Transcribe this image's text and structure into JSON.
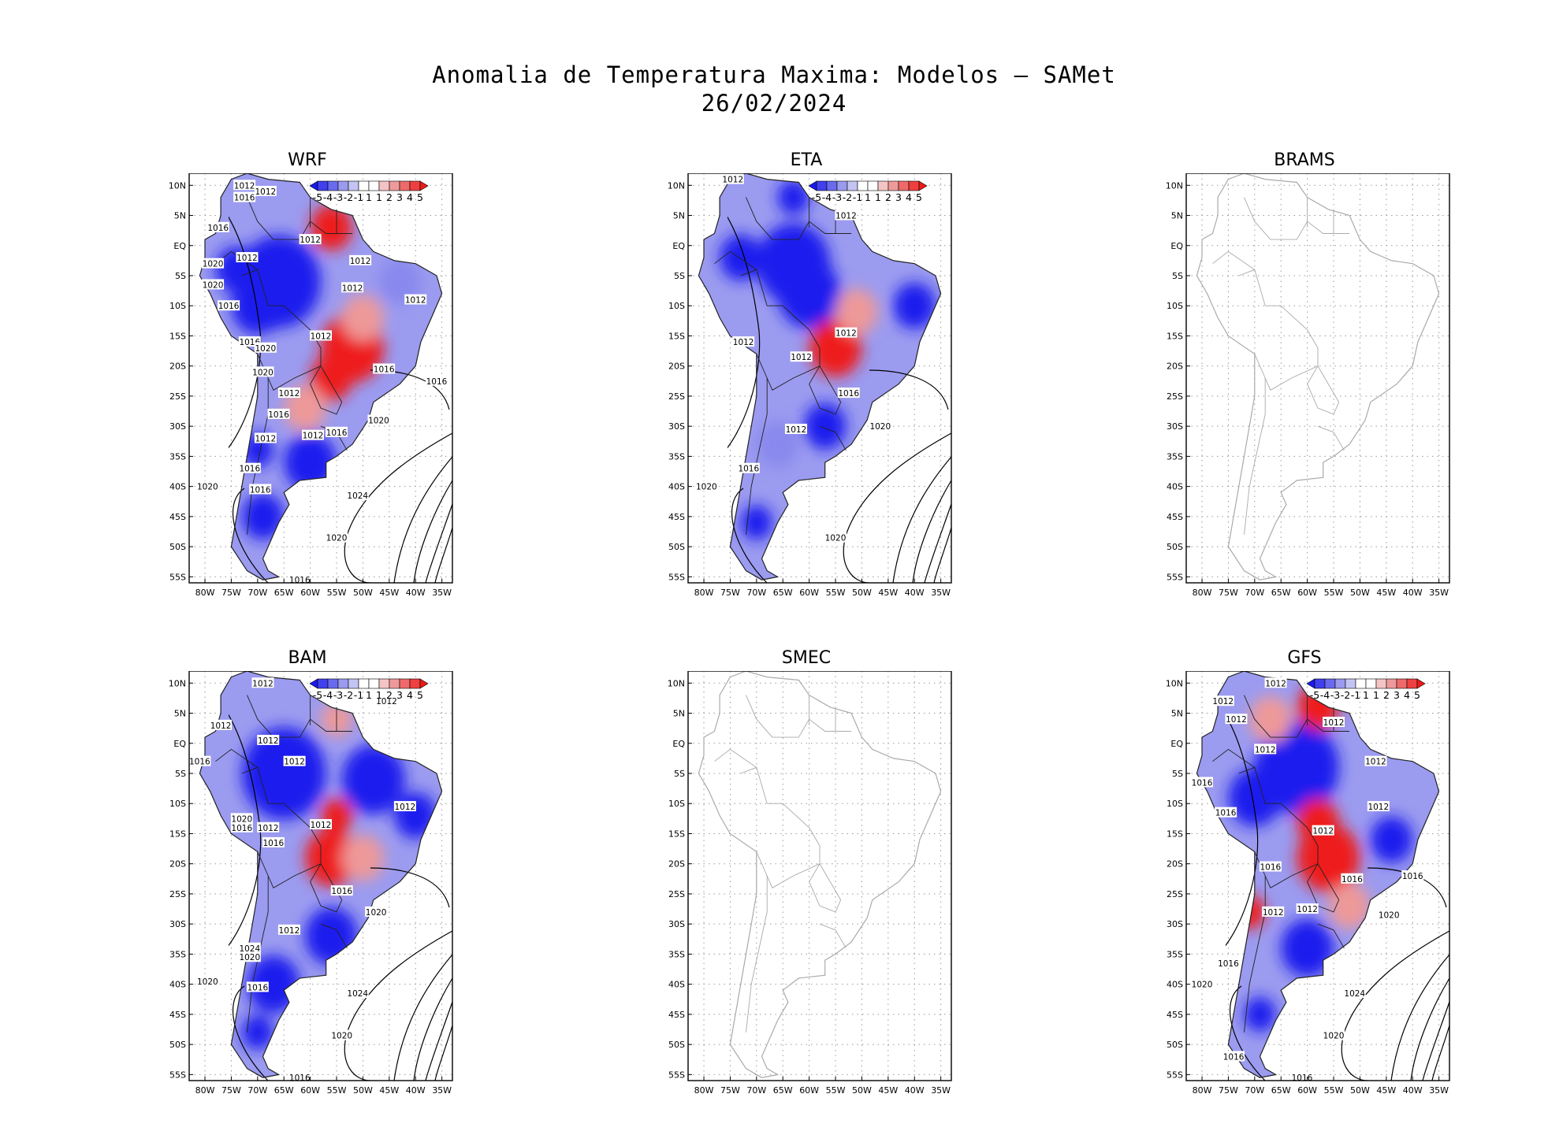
{
  "title": {
    "line1": "Anomalia de Temperatura Maxima: Modelos – SAMet",
    "line2": "26/02/2024"
  },
  "colors": {
    "cold": "#1a1aee",
    "mid_cold": "#8888ee",
    "neutral": "#ffffff",
    "mid_warm": "#ee9999",
    "warm": "#ee1a1a",
    "coast_active": "#222222",
    "coast_inactive": "#aaaaaa",
    "grid": "#999999"
  },
  "axes": {
    "lat_ticks": [
      "10N",
      "5N",
      "EQ",
      "5S",
      "10S",
      "15S",
      "20S",
      "25S",
      "30S",
      "35S",
      "40S",
      "45S",
      "50S",
      "55S"
    ],
    "lon_ticks": [
      "80W",
      "75W",
      "70W",
      "65W",
      "60W",
      "55W",
      "50W",
      "45W",
      "40W",
      "35W"
    ],
    "lon_range": [
      -83,
      -33
    ],
    "lat_range": [
      -56,
      12
    ]
  },
  "colorbar": {
    "labels": [
      "-5",
      "-4",
      "-3",
      "-2",
      "-1",
      "1",
      "1",
      "2",
      "3",
      "4",
      "5"
    ]
  },
  "panels": [
    {
      "id": "wrf",
      "label": "WRF",
      "has_data": true,
      "isobars": [
        {
          "text": "1012",
          "lon": -72.5,
          "lat": 10
        },
        {
          "text": "1012",
          "lon": -68.5,
          "lat": 9
        },
        {
          "text": "1016",
          "lon": -72.5,
          "lat": 8
        },
        {
          "text": "1016",
          "lon": -77.5,
          "lat": 3
        },
        {
          "text": "1012",
          "lon": -60,
          "lat": 1
        },
        {
          "text": "1012",
          "lon": -72,
          "lat": -2
        },
        {
          "text": "1020",
          "lon": -78.5,
          "lat": -3
        },
        {
          "text": "1012",
          "lon": -50.5,
          "lat": -2.5
        },
        {
          "text": "1020",
          "lon": -78.5,
          "lat": -6.5
        },
        {
          "text": "1012",
          "lon": -52,
          "lat": -7
        },
        {
          "text": "1012",
          "lon": -40,
          "lat": -9
        },
        {
          "text": "1016",
          "lon": -75.5,
          "lat": -10
        },
        {
          "text": "1012",
          "lon": -58,
          "lat": -15
        },
        {
          "text": "1016",
          "lon": -71.5,
          "lat": -16
        },
        {
          "text": "1020",
          "lon": -68.5,
          "lat": -17
        },
        {
          "text": "1016",
          "lon": -46,
          "lat": -20.5
        },
        {
          "text": "1020",
          "lon": -69,
          "lat": -21
        },
        {
          "text": "1012",
          "lon": -64,
          "lat": -24.5
        },
        {
          "text": "1016",
          "lon": -36,
          "lat": -22.5
        },
        {
          "text": "1016",
          "lon": -66,
          "lat": -28
        },
        {
          "text": "1020",
          "lon": -47,
          "lat": -29
        },
        {
          "text": "1012",
          "lon": -68.5,
          "lat": -32
        },
        {
          "text": "1012",
          "lon": -59.5,
          "lat": -31.5
        },
        {
          "text": "1016",
          "lon": -55,
          "lat": -31
        },
        {
          "text": "1016",
          "lon": -71.5,
          "lat": -37
        },
        {
          "text": "1020",
          "lon": -79.5,
          "lat": -40
        },
        {
          "text": "1016",
          "lon": -69.5,
          "lat": -40.5
        },
        {
          "text": "1024",
          "lon": -51,
          "lat": -41.5
        },
        {
          "text": "1020",
          "lon": -55,
          "lat": -48.5
        },
        {
          "text": "1016",
          "lon": -62,
          "lat": -55.5
        }
      ],
      "blobs": [
        {
          "lon": -66,
          "lat": -6,
          "r": 8,
          "c": "cold"
        },
        {
          "lon": -74,
          "lat": -4,
          "r": 4,
          "c": "cold"
        },
        {
          "lon": -70,
          "lat": -10,
          "r": 5,
          "c": "cold"
        },
        {
          "lon": -56,
          "lat": 3,
          "r": 4,
          "c": "warm"
        },
        {
          "lon": -52,
          "lat": -17,
          "r": 6,
          "c": "warm"
        },
        {
          "lon": -50,
          "lat": -12,
          "r": 4,
          "c": "mid_warm"
        },
        {
          "lon": -56,
          "lat": -22,
          "r": 4,
          "c": "warm"
        },
        {
          "lon": -43,
          "lat": -6,
          "r": 4,
          "c": "mid_cold"
        },
        {
          "lon": -60,
          "lat": -36,
          "r": 5,
          "c": "cold"
        },
        {
          "lon": -69,
          "lat": -45,
          "r": 4,
          "c": "cold"
        },
        {
          "lon": -70,
          "lat": -34,
          "r": 3,
          "c": "cold"
        },
        {
          "lon": -61,
          "lat": -27,
          "r": 4,
          "c": "mid_warm"
        }
      ]
    },
    {
      "id": "eta",
      "label": "ETA",
      "has_data": true,
      "isobars": [
        {
          "text": "1012",
          "lon": -74.5,
          "lat": 11
        },
        {
          "text": "1012",
          "lon": -53,
          "lat": 5
        },
        {
          "text": "1012",
          "lon": -72.5,
          "lat": -16
        },
        {
          "text": "1012",
          "lon": -53,
          "lat": -14.5
        },
        {
          "text": "1012",
          "lon": -61.5,
          "lat": -18.5
        },
        {
          "text": "1016",
          "lon": -52.5,
          "lat": -24.5
        },
        {
          "text": "1012",
          "lon": -62.5,
          "lat": -30.5
        },
        {
          "text": "1020",
          "lon": -46.5,
          "lat": -30
        },
        {
          "text": "1016",
          "lon": -71.5,
          "lat": -37
        },
        {
          "text": "1020",
          "lon": -79.5,
          "lat": -40
        },
        {
          "text": "1020",
          "lon": -55,
          "lat": -48.5
        }
      ],
      "blobs": [
        {
          "lon": -63,
          "lat": -3,
          "r": 7,
          "c": "cold"
        },
        {
          "lon": -73,
          "lat": -2,
          "r": 4,
          "c": "cold"
        },
        {
          "lon": -60,
          "lat": -8,
          "r": 6,
          "c": "cold"
        },
        {
          "lon": -55,
          "lat": -17,
          "r": 5,
          "c": "warm"
        },
        {
          "lon": -51,
          "lat": -11,
          "r": 4,
          "c": "mid_warm"
        },
        {
          "lon": -40,
          "lat": -10,
          "r": 4,
          "c": "cold"
        },
        {
          "lon": -57,
          "lat": -30,
          "r": 4,
          "c": "cold"
        },
        {
          "lon": -66,
          "lat": -33,
          "r": 4,
          "c": "mid_cold"
        },
        {
          "lon": -70,
          "lat": -46,
          "r": 3,
          "c": "cold"
        },
        {
          "lon": -63,
          "lat": 8,
          "r": 3,
          "c": "cold"
        }
      ]
    },
    {
      "id": "brams",
      "label": "BRAMS",
      "has_data": false,
      "isobars": [],
      "blobs": []
    },
    {
      "id": "bam",
      "label": "BAM",
      "has_data": true,
      "isobars": [
        {
          "text": "1012",
          "lon": -69,
          "lat": 10
        },
        {
          "text": "1012",
          "lon": -45.5,
          "lat": 7
        },
        {
          "text": "1012",
          "lon": -77,
          "lat": 3
        },
        {
          "text": "1012",
          "lon": -68,
          "lat": 0.5
        },
        {
          "text": "1012",
          "lon": -63,
          "lat": -3
        },
        {
          "text": "1016",
          "lon": -81,
          "lat": -3
        },
        {
          "text": "1012",
          "lon": -42,
          "lat": -10.5
        },
        {
          "text": "1020",
          "lon": -73,
          "lat": -12.5
        },
        {
          "text": "1016",
          "lon": -73,
          "lat": -14
        },
        {
          "text": "1012",
          "lon": -68,
          "lat": -14
        },
        {
          "text": "1012",
          "lon": -58,
          "lat": -13.5
        },
        {
          "text": "1016",
          "lon": -67,
          "lat": -16.5
        },
        {
          "text": "1016",
          "lon": -54,
          "lat": -24.5
        },
        {
          "text": "1020",
          "lon": -47.5,
          "lat": -28
        },
        {
          "text": "1012",
          "lon": -64,
          "lat": -31
        },
        {
          "text": "1024",
          "lon": -71.5,
          "lat": -34
        },
        {
          "text": "1020",
          "lon": -71.5,
          "lat": -35.5
        },
        {
          "text": "1020",
          "lon": -79.5,
          "lat": -39.5
        },
        {
          "text": "1016",
          "lon": -70,
          "lat": -40.5
        },
        {
          "text": "1024",
          "lon": -51,
          "lat": -41.5
        },
        {
          "text": "1020",
          "lon": -54,
          "lat": -48.5
        },
        {
          "text": "1016",
          "lon": -62,
          "lat": -55.5
        }
      ],
      "blobs": [
        {
          "lon": -65,
          "lat": -5,
          "r": 8,
          "c": "cold"
        },
        {
          "lon": -48,
          "lat": -6,
          "r": 6,
          "c": "cold"
        },
        {
          "lon": -40,
          "lat": -12,
          "r": 4,
          "c": "cold"
        },
        {
          "lon": -55,
          "lat": -12,
          "r": 3,
          "c": "warm"
        },
        {
          "lon": -56,
          "lat": -19,
          "r": 5,
          "c": "warm"
        },
        {
          "lon": -50,
          "lat": -19,
          "r": 4,
          "c": "mid_warm"
        },
        {
          "lon": -56,
          "lat": -32,
          "r": 5,
          "c": "cold"
        },
        {
          "lon": -67,
          "lat": -40,
          "r": 5,
          "c": "cold"
        },
        {
          "lon": -70,
          "lat": -48,
          "r": 3,
          "c": "cold"
        },
        {
          "lon": -55,
          "lat": 4,
          "r": 3,
          "c": "mid_warm"
        }
      ]
    },
    {
      "id": "smec",
      "label": "SMEC",
      "has_data": false,
      "isobars": [],
      "blobs": []
    },
    {
      "id": "gfs",
      "label": "GFS",
      "has_data": true,
      "isobars": [
        {
          "text": "1012",
          "lon": -66,
          "lat": 10
        },
        {
          "text": "1012",
          "lon": -76,
          "lat": 7
        },
        {
          "text": "1012",
          "lon": -73.5,
          "lat": 4
        },
        {
          "text": "1012",
          "lon": -55,
          "lat": 3.5
        },
        {
          "text": "1012",
          "lon": -68,
          "lat": -1
        },
        {
          "text": "1012",
          "lon": -47,
          "lat": -3
        },
        {
          "text": "1016",
          "lon": -80,
          "lat": -6.5
        },
        {
          "text": "1012",
          "lon": -46.5,
          "lat": -10.5
        },
        {
          "text": "1016",
          "lon": -75.5,
          "lat": -11.5
        },
        {
          "text": "1012",
          "lon": -57,
          "lat": -14.5
        },
        {
          "text": "1016",
          "lon": -67,
          "lat": -20.5
        },
        {
          "text": "1016",
          "lon": -51.5,
          "lat": -22.5
        },
        {
          "text": "1016",
          "lon": -40,
          "lat": -22
        },
        {
          "text": "1012",
          "lon": -66.5,
          "lat": -28
        },
        {
          "text": "1012",
          "lon": -60,
          "lat": -27.5
        },
        {
          "text": "1020",
          "lon": -44.5,
          "lat": -28.5
        },
        {
          "text": "1016",
          "lon": -75,
          "lat": -36.5
        },
        {
          "text": "1020",
          "lon": -80,
          "lat": -40
        },
        {
          "text": "1024",
          "lon": -51,
          "lat": -41.5
        },
        {
          "text": "1020",
          "lon": -55,
          "lat": -48.5
        },
        {
          "text": "1016",
          "lon": -74,
          "lat": -52
        },
        {
          "text": "1016",
          "lon": -61,
          "lat": -55.5
        }
      ],
      "blobs": [
        {
          "lon": -62,
          "lat": -4,
          "r": 8,
          "c": "cold"
        },
        {
          "lon": -70,
          "lat": -9,
          "r": 5,
          "c": "cold"
        },
        {
          "lon": -58,
          "lat": 6,
          "r": 4,
          "c": "warm"
        },
        {
          "lon": -67,
          "lat": 4,
          "r": 4,
          "c": "mid_warm"
        },
        {
          "lon": -56,
          "lat": -19,
          "r": 6,
          "c": "warm"
        },
        {
          "lon": -58,
          "lat": -13,
          "r": 4,
          "c": "warm"
        },
        {
          "lon": -52,
          "lat": -27,
          "r": 4,
          "c": "mid_warm"
        },
        {
          "lon": -60,
          "lat": -34,
          "r": 5,
          "c": "cold"
        },
        {
          "lon": -44,
          "lat": -16,
          "r": 4,
          "c": "cold"
        },
        {
          "lon": -69,
          "lat": -45,
          "r": 3,
          "c": "cold"
        },
        {
          "lon": -71,
          "lat": -28,
          "r": 3,
          "c": "warm"
        }
      ]
    }
  ]
}
